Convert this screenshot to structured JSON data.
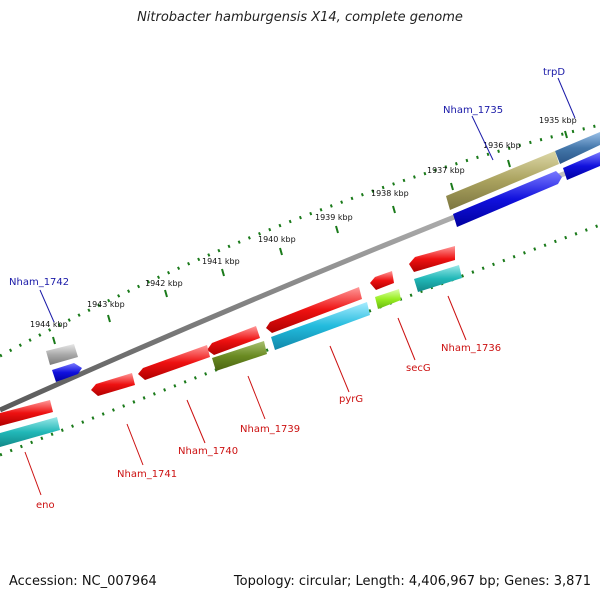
{
  "title": "Nitrobacter hamburgensis X14, complete genome",
  "footer": {
    "accession": "Accession: NC_007964",
    "summary": "Topology: circular; Length: 4,406,967 bp; Genes: 3,871"
  },
  "scale_ticks": [
    "1935 kbp",
    "1936 kbp",
    "1937 kbp",
    "1938 kbp",
    "1939 kbp",
    "1940 kbp",
    "1941 kbp",
    "1942 kbp",
    "1943 kbp",
    "1944 kbp"
  ],
  "gene_labels": {
    "forward": [
      "trpD",
      "Nham_1735",
      "Nham_1742"
    ],
    "reverse": [
      "Nham_1736",
      "secG",
      "pyrG",
      "Nham_1739",
      "Nham_1740",
      "Nham_1741",
      "eno"
    ]
  },
  "colors": {
    "backbone": "#8a8a8a",
    "forward_label": "#1a1aa8",
    "reverse_label": "#cc1111",
    "gene_red": "#ee1111",
    "gene_blue": "#1111dd",
    "gene_cyan": "#22bbdd",
    "gene_teal": "#22b8b8",
    "gene_olive": "#aaa25e",
    "gene_darkgreen": "#6a8a22",
    "gene_lime": "#99ee22",
    "gene_steel": "#4477aa",
    "gene_grey": "#aaaaaa",
    "ticks": "#1a7a1a"
  }
}
